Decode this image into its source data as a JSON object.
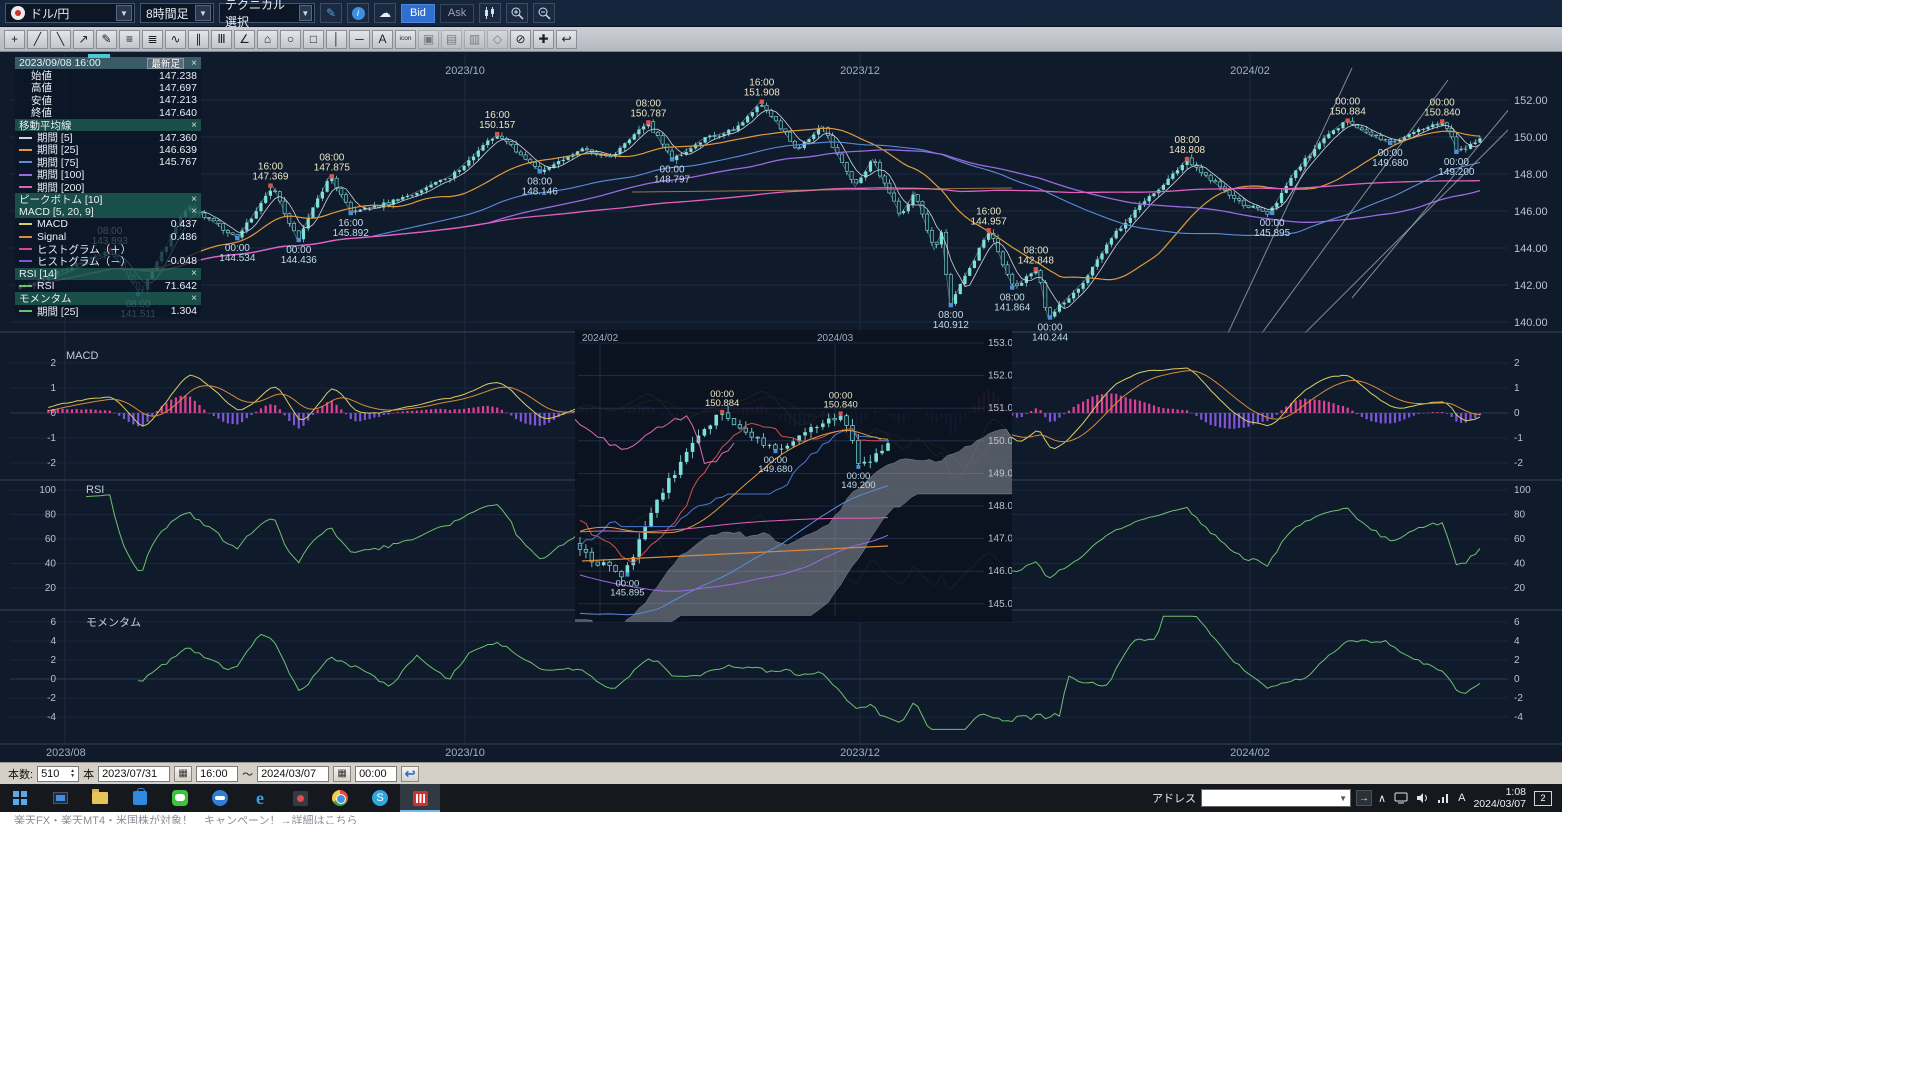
{
  "colors": {
    "accent_blue": "#2e6fd0",
    "chart_bg": "#0f1a2b",
    "up_candle": "#7de0da",
    "ma5": "#d0d6dc",
    "ma25": "#e09a3c",
    "ma75": "#5b8dd9",
    "ma100": "#9a6ae0",
    "ma200": "#e060c0",
    "macd_line": "#d9cf5e",
    "signal_line": "#d98b3c",
    "hist_pos": "#e0409a",
    "hist_neg": "#8055d9",
    "rsi_line": "#6ec06e",
    "momentum_line": "#6ec06e",
    "marker_high": "#d9534f",
    "marker_low": "#4a90d9"
  },
  "icons": {
    "dd": "▼",
    "pencil": "✎",
    "info": "i",
    "cloud": "☁",
    "close": "×",
    "spin_up": "▲",
    "spin_down": "▼",
    "calendar": "▦",
    "undo": "↩",
    "go": "→",
    "chevron": "∧"
  },
  "toolbar1": {
    "pair": "ドル/円",
    "timeframe": "8時間足",
    "technical": "テクニカル選択",
    "bid": "Bid",
    "ask": "Ask"
  },
  "toolbar2": {
    "tools": [
      {
        "name": "crosshair-tool",
        "glyph": "+"
      },
      {
        "name": "trendline-tool",
        "glyph": "╱"
      },
      {
        "name": "extended-line-tool",
        "glyph": "╲"
      },
      {
        "name": "arrow-line-tool",
        "glyph": "↗"
      },
      {
        "name": "freehand-tool",
        "glyph": "✎"
      },
      {
        "name": "horizontal-lines-tool",
        "glyph": "≡"
      },
      {
        "name": "grid-lines-tool",
        "glyph": "≣"
      },
      {
        "name": "wave-line-tool",
        "glyph": "∿"
      },
      {
        "name": "parallel-lines-tool",
        "glyph": "∥"
      },
      {
        "name": "fibonacci-tool",
        "glyph": "Ⅲ"
      },
      {
        "name": "angle-tool",
        "glyph": "∠"
      },
      {
        "name": "pentagon-tool",
        "glyph": "⌂"
      },
      {
        "name": "ellipse-tool",
        "glyph": "○"
      },
      {
        "name": "rectangle-tool",
        "glyph": "□"
      },
      {
        "name": "vertical-line-tool",
        "glyph": "│"
      },
      {
        "name": "horizontal-line-tool",
        "glyph": "─"
      },
      {
        "name": "text-tool",
        "glyph": "A"
      },
      {
        "name": "icon-stamp-tool",
        "glyph": "icon",
        "small": true
      },
      {
        "name": "stamp-up-tool",
        "glyph": "▣",
        "disabled": true
      },
      {
        "name": "stamp-down-tool",
        "glyph": "▤",
        "disabled": true
      },
      {
        "name": "stamp-flag-tool",
        "glyph": "▥",
        "disabled": true
      },
      {
        "name": "stamp-mark-tool",
        "glyph": "◇",
        "disabled": true
      },
      {
        "name": "eraser-tool",
        "glyph": "⊘"
      },
      {
        "name": "settings-wrench-tool",
        "glyph": "✚"
      },
      {
        "name": "revert-tool",
        "glyph": "↩"
      }
    ]
  },
  "panel": {
    "timestamp": "2023/09/08 16:00",
    "latest_label": "最新足",
    "ohlc": [
      {
        "label": "始値",
        "value": "147.238"
      },
      {
        "label": "高値",
        "value": "147.697"
      },
      {
        "label": "安値",
        "value": "147.213"
      },
      {
        "label": "終値",
        "value": "147.640"
      }
    ],
    "ma_header": "移動平均線",
    "ma_rows": [
      {
        "label": "期間 [5]",
        "value": "147.360",
        "color": "#d0d6dc"
      },
      {
        "label": "期間 [25]",
        "value": "146.639",
        "color": "#e09a3c"
      },
      {
        "label": "期間 [75]",
        "value": "145.767",
        "color": "#5b8dd9"
      },
      {
        "label": "期間 [100]",
        "value": "",
        "color": "#9a6ae0"
      },
      {
        "label": "期間 [200]",
        "value": "",
        "color": "#e060c0"
      }
    ],
    "peak_header": "ピークボトム [10]",
    "macd_header": "MACD [5, 20, 9]",
    "macd_rows": [
      {
        "label": "MACD",
        "value": "0.437",
        "color": "#d9cf5e"
      },
      {
        "label": "Signal",
        "value": "0.486",
        "color": "#d98b3c"
      },
      {
        "label": "ヒストグラム（＋）",
        "value": "",
        "color": "#e0409a"
      },
      {
        "label": "ヒストグラム（－）",
        "value": "-0.048",
        "color": "#8055d9"
      }
    ],
    "rsi_header": "RSI [14]",
    "rsi_rows": [
      {
        "label": "RSI",
        "value": "71.642",
        "color": "#6ec06e"
      }
    ],
    "momentum_header": "モメンタム",
    "momentum_rows": [
      {
        "label": "期間 [25]",
        "value": "1.304",
        "color": "#6ec06e"
      }
    ]
  },
  "chart_data": {
    "type": "candlestick+indicators",
    "pair": "ドル/円",
    "interval": "8時間足",
    "quote_side": "Bid",
    "x_axis_labels": [
      {
        "label": "2023/08",
        "x": 65
      },
      {
        "label": "2023/10",
        "x": 465
      },
      {
        "label": "2023/12",
        "x": 860
      },
      {
        "label": "2024/02",
        "x": 1250
      }
    ],
    "y_axis_ticks": [
      152,
      150,
      148,
      146,
      144,
      142,
      140
    ],
    "price_waypoints": [
      [
        0,
        141.8
      ],
      [
        0.062,
        143.893
      ],
      [
        0.082,
        141.511
      ],
      [
        0.115,
        146.3
      ],
      [
        0.149,
        144.534
      ],
      [
        0.173,
        147.369
      ],
      [
        0.19,
        144.436
      ],
      [
        0.212,
        147.875
      ],
      [
        0.227,
        145.892
      ],
      [
        0.26,
        146.6
      ],
      [
        0.295,
        147.9
      ],
      [
        0.327,
        150.157
      ],
      [
        0.356,
        148.146
      ],
      [
        0.385,
        149.3
      ],
      [
        0.405,
        148.9
      ],
      [
        0.43,
        150.787
      ],
      [
        0.447,
        148.797
      ],
      [
        0.468,
        149.9
      ],
      [
        0.49,
        150.4
      ],
      [
        0.507,
        151.908
      ],
      [
        0.533,
        149.3
      ],
      [
        0.549,
        150.6
      ],
      [
        0.572,
        147.3
      ],
      [
        0.584,
        148.8
      ],
      [
        0.603,
        145.8
      ],
      [
        0.613,
        147.0
      ],
      [
        0.626,
        143.9
      ],
      [
        0.631,
        144.8
      ],
      [
        0.637,
        140.912
      ],
      [
        0.664,
        144.957
      ],
      [
        0.68,
        141.864
      ],
      [
        0.697,
        142.848
      ],
      [
        0.704,
        140.244
      ],
      [
        0.73,
        142.3
      ],
      [
        0.75,
        144.8
      ],
      [
        0.77,
        146.5
      ],
      [
        0.785,
        147.5
      ],
      [
        0.799,
        148.808
      ],
      [
        0.815,
        147.7
      ],
      [
        0.84,
        146.3
      ],
      [
        0.856,
        145.895
      ],
      [
        0.872,
        148.0
      ],
      [
        0.895,
        150.1
      ],
      [
        0.908,
        150.884
      ],
      [
        0.922,
        150.2
      ],
      [
        0.938,
        149.68
      ],
      [
        0.957,
        150.3
      ],
      [
        0.975,
        150.84
      ],
      [
        0.985,
        149.2
      ],
      [
        1,
        149.9
      ]
    ],
    "annotations": [
      {
        "t": 0.062,
        "price": 143.893,
        "time": "08:00",
        "side": "high"
      },
      {
        "t": 0.082,
        "price": 141.511,
        "time": "08:00",
        "side": "low"
      },
      {
        "t": 0.149,
        "price": 144.534,
        "time": "00:00",
        "side": "low"
      },
      {
        "t": 0.173,
        "price": 147.369,
        "time": "16:00",
        "side": "high"
      },
      {
        "t": 0.19,
        "price": 144.436,
        "time": "00:00",
        "side": "low"
      },
      {
        "t": 0.212,
        "price": 147.875,
        "time": "08:00",
        "side": "high"
      },
      {
        "t": 0.227,
        "price": 145.892,
        "time": "16:00",
        "side": "low"
      },
      {
        "t": 0.327,
        "price": 150.157,
        "time": "16:00",
        "side": "high"
      },
      {
        "t": 0.356,
        "price": 148.146,
        "time": "08:00",
        "side": "low"
      },
      {
        "t": 0.43,
        "price": 150.787,
        "time": "08:00",
        "side": "high"
      },
      {
        "t": 0.447,
        "price": 148.797,
        "time": "00:00",
        "side": "low"
      },
      {
        "t": 0.507,
        "price": 151.908,
        "time": "16:00",
        "side": "high"
      },
      {
        "t": 0.637,
        "price": 140.912,
        "time": "08:00",
        "side": "low"
      },
      {
        "t": 0.664,
        "price": 144.957,
        "time": "16:00",
        "side": "high"
      },
      {
        "t": 0.68,
        "price": 141.864,
        "time": "08:00",
        "side": "low"
      },
      {
        "t": 0.697,
        "price": 142.848,
        "time": "08:00",
        "side": "high"
      },
      {
        "t": 0.704,
        "price": 140.244,
        "time": "00:00",
        "side": "low"
      },
      {
        "t": 0.799,
        "price": 148.808,
        "time": "08:00",
        "side": "high"
      },
      {
        "t": 0.856,
        "price": 145.895,
        "time": "00:00",
        "side": "low"
      },
      {
        "t": 0.908,
        "price": 150.884,
        "time": "00:00",
        "side": "high"
      },
      {
        "t": 0.938,
        "price": 149.68,
        "time": "00:00",
        "side": "low"
      },
      {
        "t": 0.975,
        "price": 150.84,
        "time": "00:00",
        "side": "high"
      },
      {
        "t": 0.985,
        "price": 149.2,
        "time": "00:00",
        "side": "low"
      }
    ],
    "trendlines": [
      [
        1228,
        333,
        1352,
        68
      ],
      [
        1262,
        333,
        1448,
        80
      ],
      [
        1305,
        333,
        1530,
        108
      ],
      [
        1352,
        298,
        1530,
        84
      ],
      [
        632,
        192,
        1012,
        188,
        "rgba(205,160,95,0.7)"
      ]
    ],
    "macd": {
      "title": "MACD",
      "params": [
        5,
        20,
        9
      ],
      "ticks": [
        2,
        1,
        0,
        -1,
        -2
      ]
    },
    "rsi": {
      "title": "RSI",
      "params": [
        14
      ],
      "ticks": [
        100,
        80,
        60,
        40,
        20
      ]
    },
    "momentum": {
      "title": "モメンタム",
      "params": [
        25
      ],
      "ticks": [
        6,
        4,
        2,
        0,
        -2,
        -4
      ]
    },
    "inset": {
      "t_start": 0.833,
      "x_labels": [
        {
          "label": "2024/02",
          "x": 600
        },
        {
          "label": "2024/03",
          "x": 835
        }
      ],
      "y_ticks": [
        153,
        152,
        151,
        150,
        149,
        148,
        147,
        146,
        145
      ],
      "annotations": [
        {
          "t": 0.856,
          "price": 145.895,
          "time": "00:00",
          "side": "low"
        },
        {
          "t": 0.908,
          "price": 150.884,
          "time": "00:00",
          "side": "high"
        },
        {
          "t": 0.938,
          "price": 149.68,
          "time": "00:00",
          "side": "low"
        },
        {
          "t": 0.975,
          "price": 150.84,
          "time": "00:00",
          "side": "high"
        },
        {
          "t": 0.985,
          "price": 149.2,
          "time": "00:00",
          "side": "low"
        }
      ]
    }
  },
  "footer": {
    "count_label": "本数:",
    "count": "510",
    "unit": "本",
    "date_from": "2023/07/31",
    "time_from": "16:00",
    "tilde": "～",
    "date_to": "2024/03/07",
    "time_to": "00:00"
  },
  "taskbar": {
    "address_label": "アドレス",
    "ime": "A",
    "clock_time": "1:08",
    "clock_date": "2024/03/07",
    "badge": "2",
    "apps": [
      {
        "name": "task-view-app",
        "cls": "icoTv"
      },
      {
        "name": "file-explorer-app",
        "cls": "icoFolder"
      },
      {
        "name": "store-app",
        "cls": "icoStore"
      },
      {
        "name": "line-app",
        "cls": "icoLine"
      },
      {
        "name": "teamviewer-app",
        "cls": "icoBlueCircle"
      },
      {
        "name": "edge-app",
        "cls": "icoEdge",
        "glyph": "e"
      },
      {
        "name": "photos-app",
        "cls": "icoDark"
      },
      {
        "name": "chrome-app",
        "cls": "icoChrome"
      },
      {
        "name": "skype-app",
        "cls": "icoSkype",
        "glyph": "S"
      },
      {
        "name": "marketspeed-fx-app",
        "cls": "icoMS",
        "active": true
      }
    ]
  },
  "banner": {
    "text": "楽天FX・楽天MT4・米国株が対象！　キャンペーン！→詳細はこちら"
  }
}
